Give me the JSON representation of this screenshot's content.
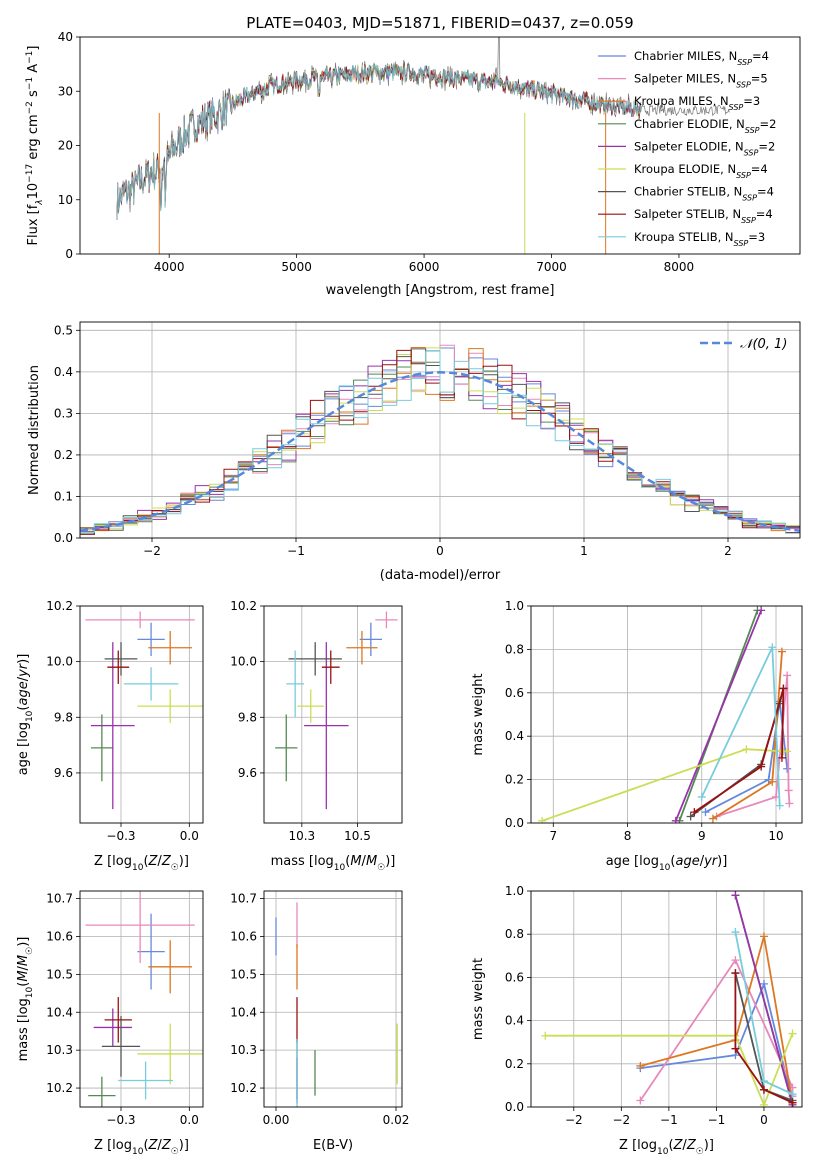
{
  "figure": {
    "title": "PLATE=0403, MJD=51871, FIBERID=0437, z=0.059"
  },
  "colors": {
    "Chabrier MILES": "#6688dd",
    "Salpeter MILES": "#e888bb",
    "Kroupa MILES": "#dd7722",
    "Chabrier ELODIE": "#558855",
    "Salpeter ELODIE": "#9933aa",
    "Kroupa ELODIE": "#ccdd55",
    "Chabrier STELIB": "#555555",
    "Salpeter STELIB": "#991111",
    "Kroupa STELIB": "#77ccdd",
    "N01": "#5588dd"
  },
  "chart_data": [
    {
      "id": "spectrum",
      "type": "line",
      "xlabel": "wavelength [Angstrom, rest frame]",
      "ylabel": "Flux [f_λ10^-17 erg cm^-2 s^-1 A^-1]",
      "xlim": [
        3300,
        8950
      ],
      "ylim": [
        0,
        40
      ],
      "xticks": [
        4000,
        5000,
        6000,
        7000,
        8000
      ],
      "yticks": [
        0,
        10,
        20,
        30,
        40
      ],
      "grid": false,
      "legend_position": "upper-right",
      "legend": [
        {
          "model": "Chabrier MILES",
          "nssp": "4"
        },
        {
          "model": "Salpeter MILES",
          "nssp": "5"
        },
        {
          "model": "Kroupa MILES",
          "nssp": "3"
        },
        {
          "model": "Chabrier ELODIE",
          "nssp": "2"
        },
        {
          "model": "Salpeter ELODIE",
          "nssp": "2"
        },
        {
          "model": "Kroupa ELODIE",
          "nssp": "4"
        },
        {
          "model": "Chabrier STELIB",
          "nssp": "4"
        },
        {
          "model": "Salpeter STELIB",
          "nssp": "4"
        },
        {
          "model": "Kroupa STELIB",
          "nssp": "3"
        }
      ],
      "continuum": {
        "x": [
          3600,
          3800,
          3950,
          4050,
          4200,
          4400,
          4600,
          4800,
          5000,
          5200,
          5400,
          5600,
          5800,
          6000,
          6200,
          6400,
          6600,
          6800,
          7000,
          7200,
          7400,
          7600,
          7700
        ],
        "y": [
          10,
          14,
          16,
          20,
          24,
          26,
          29,
          31,
          32,
          32.5,
          33,
          33.5,
          33.5,
          33,
          32.5,
          32,
          31.5,
          30.5,
          29.5,
          28.5,
          27.5,
          27,
          26.5
        ]
      }
    },
    {
      "id": "residuals",
      "type": "histogram",
      "xlabel": "(data-model)/error",
      "ylabel": "Normed distribution",
      "xlim": [
        -2.5,
        2.5
      ],
      "ylim": [
        0,
        0.52
      ],
      "xticks": [
        -2,
        -1,
        0,
        1,
        2
      ],
      "yticks": [
        0.0,
        0.1,
        0.2,
        0.3,
        0.4,
        0.5
      ],
      "grid": true,
      "bin_width": 0.1,
      "legend": "𝒩(0, 1)",
      "legend_position": "upper-right"
    },
    {
      "id": "age-vs-Z",
      "type": "errorbar",
      "xlabel": "Z [log10(Z/Z☉)]",
      "ylabel": "age [log10(age/yr)]",
      "xlim": [
        -0.4,
        0.05
      ],
      "ylim": [
        9.42,
        10.2
      ],
      "xticks": [
        -0.25,
        0.0
      ],
      "yticks": [
        9.6,
        9.8,
        10.0,
        10.2
      ],
      "grid": true,
      "points": [
        {
          "model": "Chabrier MILES",
          "x": -0.14,
          "y": 10.08,
          "xerr": 0.05,
          "yerr": 0.06
        },
        {
          "model": "Salpeter MILES",
          "x": -0.18,
          "y": 10.15,
          "xerr": 0.2,
          "yerr": 0.03
        },
        {
          "model": "Kroupa MILES",
          "x": -0.07,
          "y": 10.05,
          "xerr": 0.08,
          "yerr": 0.06
        },
        {
          "model": "Chabrier ELODIE",
          "x": -0.32,
          "y": 9.69,
          "xerr": 0.04,
          "yerr": 0.12
        },
        {
          "model": "Salpeter ELODIE",
          "x": -0.28,
          "y": 9.77,
          "xerr": 0.08,
          "yerr": 0.3
        },
        {
          "model": "Kroupa ELODIE",
          "x": -0.07,
          "y": 9.84,
          "xerr": 0.12,
          "yerr": 0.06
        },
        {
          "model": "Chabrier STELIB",
          "x": -0.25,
          "y": 10.01,
          "xerr": 0.06,
          "yerr": 0.06
        },
        {
          "model": "Salpeter STELIB",
          "x": -0.26,
          "y": 9.98,
          "xerr": 0.04,
          "yerr": 0.06
        },
        {
          "model": "Kroupa STELIB",
          "x": -0.14,
          "y": 9.92,
          "xerr": 0.1,
          "yerr": 0.06
        }
      ]
    },
    {
      "id": "age-vs-mass",
      "type": "errorbar",
      "xlabel": "mass [log10(M/M☉)]",
      "ylabel": "",
      "xlim": [
        10.08,
        10.7
      ],
      "ylim": [
        9.42,
        10.2
      ],
      "xticks": [
        10.25,
        10.5
      ],
      "yticks": [
        9.6,
        9.8,
        10.0,
        10.2
      ],
      "grid": true,
      "points": [
        {
          "model": "Chabrier MILES",
          "x": 10.56,
          "y": 10.08,
          "xerr": 0.05,
          "yerr": 0.06
        },
        {
          "model": "Salpeter MILES",
          "x": 10.63,
          "y": 10.15,
          "xerr": 0.05,
          "yerr": 0.03
        },
        {
          "model": "Kroupa MILES",
          "x": 10.52,
          "y": 10.05,
          "xerr": 0.07,
          "yerr": 0.06
        },
        {
          "model": "Chabrier ELODIE",
          "x": 10.18,
          "y": 9.69,
          "xerr": 0.05,
          "yerr": 0.12
        },
        {
          "model": "Salpeter ELODIE",
          "x": 10.36,
          "y": 9.77,
          "xerr": 0.1,
          "yerr": 0.3
        },
        {
          "model": "Kroupa ELODIE",
          "x": 10.29,
          "y": 9.84,
          "xerr": 0.06,
          "yerr": 0.06
        },
        {
          "model": "Chabrier STELIB",
          "x": 10.31,
          "y": 10.01,
          "xerr": 0.12,
          "yerr": 0.06
        },
        {
          "model": "Salpeter STELIB",
          "x": 10.38,
          "y": 9.98,
          "xerr": 0.04,
          "yerr": 0.06
        },
        {
          "model": "Kroupa STELIB",
          "x": 10.22,
          "y": 9.92,
          "xerr": 0.04,
          "yerr": 0.12
        }
      ]
    },
    {
      "id": "weight-vs-age",
      "type": "line",
      "xlabel": "age [log10(age/yr)]",
      "ylabel": "mass weight",
      "xlim": [
        6.7,
        10.35
      ],
      "ylim": [
        0,
        1.0
      ],
      "xticks": [
        7,
        8,
        9,
        10
      ],
      "yticks": [
        0.0,
        0.2,
        0.4,
        0.6,
        0.8,
        1.0
      ],
      "grid": true,
      "series": [
        {
          "model": "Chabrier MILES",
          "x": [
            9.05,
            9.9,
            10.05,
            10.15
          ],
          "y": [
            0.05,
            0.2,
            0.56,
            0.25
          ]
        },
        {
          "model": "Salpeter MILES",
          "x": [
            9.2,
            10.0,
            10.15,
            10.17,
            10.18
          ],
          "y": [
            0.03,
            0.12,
            0.68,
            0.15,
            0.09
          ]
        },
        {
          "model": "Kroupa MILES",
          "x": [
            9.15,
            9.95,
            10.08
          ],
          "y": [
            0.02,
            0.19,
            0.79
          ]
        },
        {
          "model": "Chabrier ELODIE",
          "x": [
            8.7,
            9.75
          ],
          "y": [
            0.01,
            0.98
          ]
        },
        {
          "model": "Salpeter ELODIE",
          "x": [
            8.65,
            9.8
          ],
          "y": [
            0.01,
            0.98
          ]
        },
        {
          "model": "Kroupa ELODIE",
          "x": [
            6.85,
            9.6,
            10.1,
            10.15
          ],
          "y": [
            0.01,
            0.34,
            0.33,
            0.33
          ]
        },
        {
          "model": "Chabrier STELIB",
          "x": [
            8.85,
            9.8,
            10.05,
            10.1
          ],
          "y": [
            0.03,
            0.27,
            0.55,
            0.62
          ]
        },
        {
          "model": "Salpeter STELIB",
          "x": [
            8.9,
            9.8,
            10.1,
            10.08
          ],
          "y": [
            0.05,
            0.26,
            0.62,
            0.3
          ]
        },
        {
          "model": "Kroupa STELIB",
          "x": [
            9.0,
            9.95,
            10.05
          ],
          "y": [
            0.12,
            0.81,
            0.08
          ]
        }
      ]
    },
    {
      "id": "mass-vs-Z",
      "type": "errorbar",
      "xlabel": "Z [log10(Z/Z☉)]",
      "ylabel": "mass [log10(M/M☉)]",
      "xlim": [
        -0.4,
        0.05
      ],
      "ylim": [
        10.15,
        10.72
      ],
      "xticks": [
        -0.25,
        0.0
      ],
      "yticks": [
        10.2,
        10.3,
        10.4,
        10.5,
        10.6,
        10.7
      ],
      "grid": true,
      "points": [
        {
          "model": "Chabrier MILES",
          "x": -0.14,
          "y": 10.56,
          "xerr": 0.05,
          "yerr": 0.1
        },
        {
          "model": "Salpeter MILES",
          "x": -0.18,
          "y": 10.63,
          "xerr": 0.2,
          "yerr": 0.1
        },
        {
          "model": "Kroupa MILES",
          "x": -0.07,
          "y": 10.52,
          "xerr": 0.08,
          "yerr": 0.07
        },
        {
          "model": "Chabrier ELODIE",
          "x": -0.32,
          "y": 10.18,
          "xerr": 0.05,
          "yerr": 0.05
        },
        {
          "model": "Salpeter ELODIE",
          "x": -0.28,
          "y": 10.36,
          "xerr": 0.07,
          "yerr": 0.05
        },
        {
          "model": "Kroupa ELODIE",
          "x": -0.07,
          "y": 10.29,
          "xerr": 0.12,
          "yerr": 0.08
        },
        {
          "model": "Chabrier STELIB",
          "x": -0.25,
          "y": 10.31,
          "xerr": 0.07,
          "yerr": 0.08
        },
        {
          "model": "Salpeter STELIB",
          "x": -0.26,
          "y": 10.38,
          "xerr": 0.05,
          "yerr": 0.06
        },
        {
          "model": "Kroupa STELIB",
          "x": -0.16,
          "y": 10.22,
          "xerr": 0.1,
          "yerr": 0.05
        }
      ]
    },
    {
      "id": "mass-vs-ebv",
      "type": "errorbar",
      "xlabel": "E(B-V)",
      "ylabel": "",
      "xlim": [
        -0.002,
        0.021
      ],
      "ylim": [
        10.15,
        10.72
      ],
      "xticks": [
        0.0,
        0.02
      ],
      "yticks": [
        10.2,
        10.3,
        10.4,
        10.5,
        10.6,
        10.7
      ],
      "grid": true,
      "points": [
        {
          "model": "Chabrier MILES",
          "x": 0.0,
          "y": 10.6,
          "xerr": 0,
          "yerr": 0.05
        },
        {
          "model": "Salpeter MILES",
          "x": 0.0035,
          "y": 10.63,
          "xerr": 0,
          "yerr": 0.06
        },
        {
          "model": "Kroupa MILES",
          "x": 0.0035,
          "y": 10.52,
          "xerr": 0,
          "yerr": 0.06
        },
        {
          "model": "Chabrier ELODIE",
          "x": 0.0065,
          "y": 10.24,
          "xerr": 0,
          "yerr": 0.06
        },
        {
          "model": "Salpeter ELODIE",
          "x": 0.0035,
          "y": 10.22,
          "xerr": 0,
          "yerr": 0.06
        },
        {
          "model": "Kroupa ELODIE",
          "x": 0.0202,
          "y": 10.29,
          "xerr": 0,
          "yerr": 0.08
        },
        {
          "model": "Chabrier STELIB",
          "x": 0.0035,
          "y": 10.25,
          "xerr": 0,
          "yerr": 0.08
        },
        {
          "model": "Salpeter STELIB",
          "x": 0.0035,
          "y": 10.38,
          "xerr": 0,
          "yerr": 0.06
        },
        {
          "model": "Kroupa STELIB",
          "x": 0.0035,
          "y": 10.24,
          "xerr": 0,
          "yerr": 0.09
        }
      ]
    },
    {
      "id": "weight-vs-Z",
      "type": "line",
      "xlabel": "Z [log10(Z/Z☉)]",
      "ylabel": "mass weight",
      "xlim": [
        -2.45,
        0.4
      ],
      "ylim": [
        0,
        1.0
      ],
      "xticks": [
        -2.0,
        -1.5,
        -1.0,
        -0.5,
        0.0
      ],
      "yticks": [
        0.0,
        0.2,
        0.4,
        0.6,
        0.8,
        1.0
      ],
      "grid": true,
      "series": [
        {
          "model": "Chabrier MILES",
          "x": [
            -1.3,
            -0.3,
            0.0,
            0.3
          ],
          "y": [
            0.18,
            0.24,
            0.57,
            0.02
          ]
        },
        {
          "model": "Salpeter MILES",
          "x": [
            -1.3,
            -0.3,
            0.3,
            0.3
          ],
          "y": [
            0.03,
            0.68,
            0.09,
            0.05
          ]
        },
        {
          "model": "Kroupa MILES",
          "x": [
            -1.3,
            -0.3,
            0.0,
            0.3
          ],
          "y": [
            0.19,
            0.31,
            0.79,
            0.02
          ]
        },
        {
          "model": "Chabrier ELODIE",
          "x": [
            -0.3,
            0.3
          ],
          "y": [
            0.98,
            0.01
          ]
        },
        {
          "model": "Salpeter ELODIE",
          "x": [
            -0.3,
            0.3
          ],
          "y": [
            0.98,
            0.01
          ]
        },
        {
          "model": "Kroupa ELODIE",
          "x": [
            -2.3,
            -0.3,
            0.0,
            0.3
          ],
          "y": [
            0.33,
            0.33,
            0.01,
            0.34
          ]
        },
        {
          "model": "Chabrier STELIB",
          "x": [
            -0.3,
            0.0,
            0.3
          ],
          "y": [
            0.62,
            0.08,
            0.03
          ]
        },
        {
          "model": "Salpeter STELIB",
          "x": [
            -0.3,
            -0.3,
            0.0,
            0.3
          ],
          "y": [
            0.62,
            0.27,
            0.08,
            0.02
          ]
        },
        {
          "model": "Kroupa STELIB",
          "x": [
            -0.3,
            0.0,
            0.3
          ],
          "y": [
            0.81,
            0.12,
            0.06
          ]
        }
      ]
    }
  ]
}
